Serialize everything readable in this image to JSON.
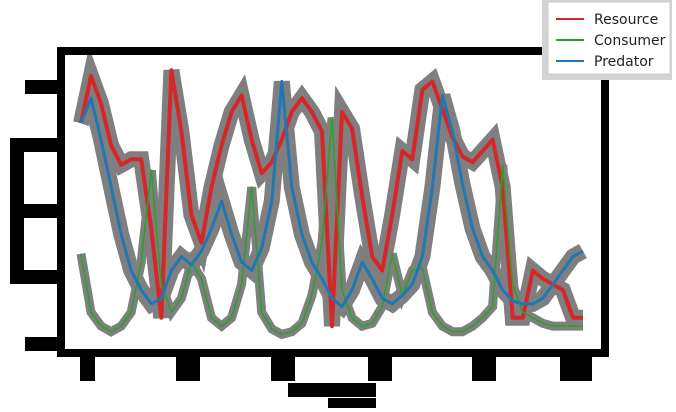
{
  "chart_data": {
    "type": "line",
    "title": "",
    "xlabel": "",
    "ylabel": "",
    "xlim": [
      0,
      100
    ],
    "ylim": [
      0,
      1
    ],
    "grid": false,
    "legend_position": "top-right",
    "series": [
      {
        "name": "Resource",
        "color": "#d62728",
        "x": [
          0,
          2,
          4,
          6,
          8,
          10,
          12,
          14,
          16,
          18,
          20,
          22,
          24,
          26,
          28,
          30,
          32,
          34,
          36,
          38,
          40,
          42,
          44,
          46,
          48,
          50,
          52,
          54,
          56,
          58,
          60,
          62,
          64,
          66,
          68,
          70,
          72,
          74,
          76,
          78,
          80,
          82,
          84,
          86,
          88,
          90,
          92,
          94,
          96,
          98,
          100
        ],
        "y": [
          0.78,
          0.95,
          0.85,
          0.7,
          0.63,
          0.65,
          0.65,
          0.4,
          0.08,
          0.97,
          0.75,
          0.45,
          0.35,
          0.55,
          0.7,
          0.82,
          0.88,
          0.72,
          0.6,
          0.64,
          0.72,
          0.82,
          0.87,
          0.82,
          0.75,
          0.05,
          0.82,
          0.76,
          0.52,
          0.3,
          0.25,
          0.45,
          0.68,
          0.65,
          0.9,
          0.93,
          0.83,
          0.73,
          0.66,
          0.64,
          0.68,
          0.72,
          0.55,
          0.08,
          0.08,
          0.25,
          0.22,
          0.2,
          0.18,
          0.08,
          0.08
        ]
      },
      {
        "name": "Consumer",
        "color": "#2ca02c",
        "x": [
          0,
          2,
          4,
          6,
          8,
          10,
          12,
          14,
          16,
          18,
          20,
          22,
          24,
          26,
          28,
          30,
          32,
          34,
          36,
          38,
          40,
          42,
          44,
          46,
          48,
          50,
          52,
          54,
          56,
          58,
          60,
          62,
          64,
          66,
          68,
          70,
          72,
          74,
          76,
          78,
          80,
          82,
          84,
          86,
          88,
          90,
          92,
          94,
          96,
          98,
          100
        ],
        "y": [
          0.31,
          0.1,
          0.05,
          0.03,
          0.05,
          0.1,
          0.28,
          0.61,
          0.2,
          0.1,
          0.15,
          0.28,
          0.22,
          0.08,
          0.05,
          0.08,
          0.2,
          0.55,
          0.1,
          0.04,
          0.02,
          0.03,
          0.06,
          0.16,
          0.35,
          0.8,
          0.18,
          0.08,
          0.05,
          0.06,
          0.12,
          0.31,
          0.16,
          0.25,
          0.26,
          0.1,
          0.05,
          0.03,
          0.03,
          0.05,
          0.08,
          0.12,
          0.63,
          0.2,
          0.1,
          0.08,
          0.06,
          0.05,
          0.05,
          0.05,
          0.05
        ]
      },
      {
        "name": "Predator",
        "color": "#1f77b4",
        "x": [
          0,
          2,
          4,
          6,
          8,
          10,
          12,
          14,
          16,
          18,
          20,
          22,
          24,
          26,
          28,
          30,
          32,
          34,
          36,
          38,
          40,
          42,
          44,
          46,
          48,
          50,
          52,
          54,
          56,
          58,
          60,
          62,
          64,
          66,
          68,
          70,
          72,
          74,
          76,
          78,
          80,
          82,
          84,
          86,
          88,
          90,
          92,
          94,
          96,
          98,
          100
        ],
        "y": [
          0.78,
          0.87,
          0.72,
          0.55,
          0.38,
          0.25,
          0.18,
          0.13,
          0.15,
          0.25,
          0.3,
          0.27,
          0.32,
          0.4,
          0.5,
          0.38,
          0.28,
          0.25,
          0.33,
          0.5,
          0.93,
          0.55,
          0.38,
          0.28,
          0.22,
          0.15,
          0.12,
          0.18,
          0.28,
          0.22,
          0.15,
          0.13,
          0.16,
          0.2,
          0.3,
          0.55,
          0.88,
          0.75,
          0.56,
          0.4,
          0.3,
          0.25,
          0.18,
          0.14,
          0.13,
          0.13,
          0.15,
          0.2,
          0.25,
          0.3,
          0.32
        ]
      }
    ]
  }
}
